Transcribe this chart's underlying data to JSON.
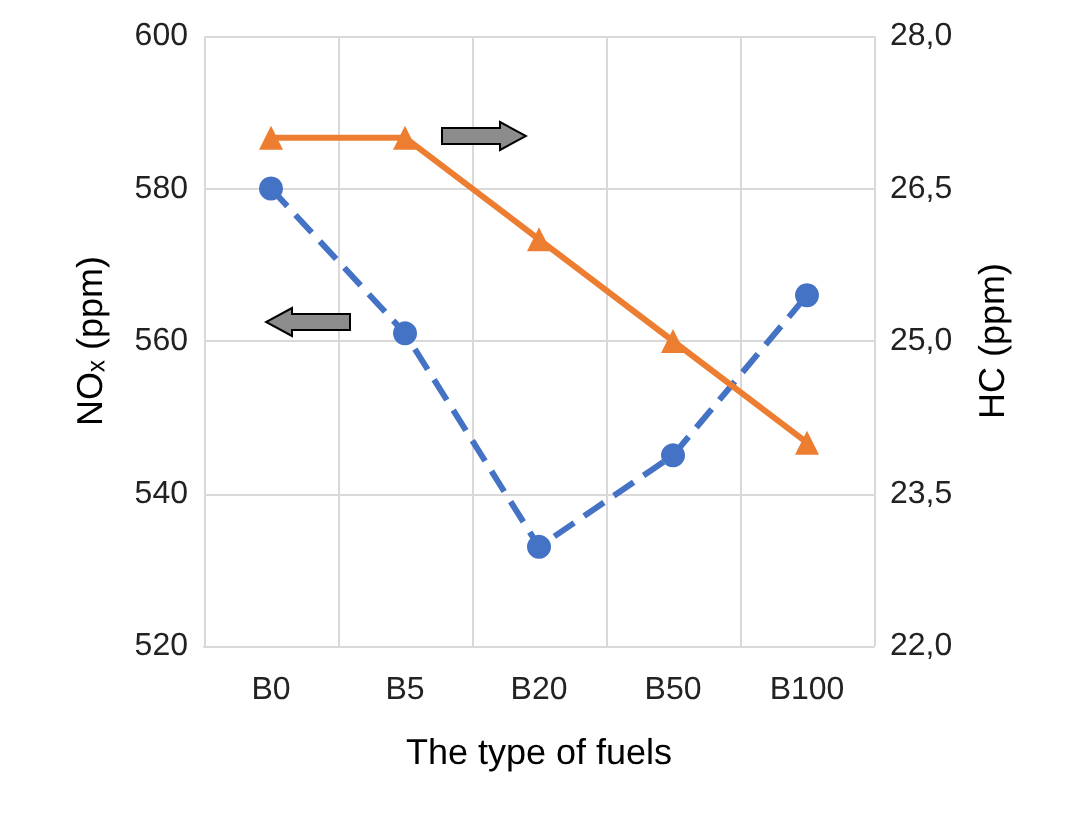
{
  "chart_data": {
    "type": "line",
    "xlabel": "The type of fuels",
    "ylabel": "NOₓ (ppm)",
    "y2label": "HC (ppm)",
    "categories": [
      "B0",
      "B5",
      "B20",
      "B50",
      "B100"
    ],
    "series": [
      {
        "color": "#4472c4",
        "values": [
          580,
          561,
          533,
          545,
          566
        ],
        "line_style": "dashed",
        "marker": "circle"
      },
      {
        "color": "#ed7d31",
        "values": [
          27.0,
          27.0,
          26.0,
          25.0,
          24.0
        ],
        "axis": "y2",
        "line_style": "solid",
        "marker": "triangle"
      }
    ],
    "ylim": [
      520,
      600
    ],
    "yticks": [
      520,
      540,
      560,
      580,
      600
    ],
    "y2lim": [
      22,
      28
    ],
    "y2ticks": [
      {
        "value": 22,
        "label": "22,0"
      },
      {
        "value": 23.5,
        "label": "23,5"
      },
      {
        "value": 25,
        "label": "25,0"
      },
      {
        "value": 26.5,
        "label": "26,5"
      },
      {
        "value": 28,
        "label": "28,0"
      }
    ],
    "grid": true
  }
}
